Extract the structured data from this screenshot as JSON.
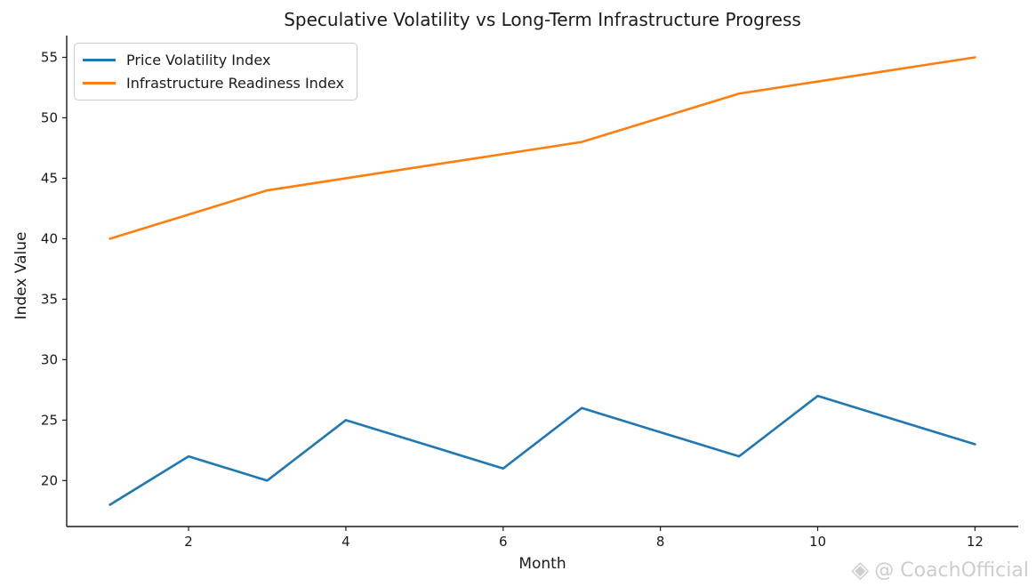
{
  "chart_data": {
    "type": "line",
    "title": "Speculative Volatility vs Long-Term Infrastructure Progress",
    "xlabel": "Month",
    "ylabel": "Index Value",
    "x": [
      1,
      2,
      3,
      4,
      5,
      6,
      7,
      8,
      9,
      10,
      11,
      12
    ],
    "series": [
      {
        "name": "Price Volatility Index",
        "color": "#1f77b4",
        "values": [
          18,
          22,
          20,
          25,
          23,
          21,
          26,
          24,
          22,
          27,
          25,
          23
        ]
      },
      {
        "name": "Infrastructure Readiness Index",
        "color": "#ff7f0e",
        "values": [
          40,
          42,
          44,
          45,
          46,
          47,
          48,
          50,
          52,
          53,
          54,
          55
        ]
      }
    ],
    "x_ticks": [
      2,
      4,
      6,
      8,
      10,
      12
    ],
    "y_ticks": [
      20,
      25,
      30,
      35,
      40,
      45,
      50,
      55
    ],
    "xlim": [
      0.45,
      12.55
    ],
    "ylim": [
      16.2,
      56.8
    ],
    "grid": false,
    "legend_position": "upper-left",
    "spines": [
      "left",
      "bottom"
    ],
    "axis_color": "#1a1a1a",
    "text_color": "#1a1a1a"
  },
  "watermark": {
    "icon": "diamond-gem-icon",
    "icon_glyph": "◈",
    "text": "@ CoachOfficial",
    "color": "#cdcdcd"
  }
}
